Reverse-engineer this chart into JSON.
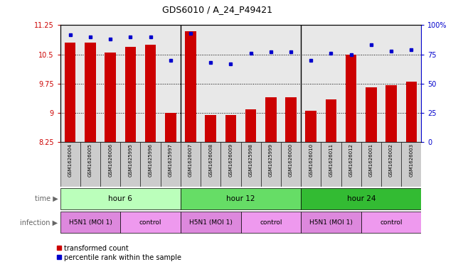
{
  "title": "GDS6010 / A_24_P49421",
  "samples": [
    "GSM1626004",
    "GSM1626005",
    "GSM1626006",
    "GSM1625995",
    "GSM1625996",
    "GSM1625997",
    "GSM1626007",
    "GSM1626008",
    "GSM1626009",
    "GSM1625998",
    "GSM1625999",
    "GSM1626000",
    "GSM1626010",
    "GSM1626011",
    "GSM1626012",
    "GSM1626001",
    "GSM1626002",
    "GSM1626003"
  ],
  "bar_values": [
    10.8,
    10.8,
    10.55,
    10.7,
    10.75,
    9.0,
    11.1,
    8.95,
    8.95,
    9.1,
    9.4,
    9.4,
    9.05,
    9.35,
    10.5,
    9.65,
    9.72,
    9.8
  ],
  "dot_values": [
    92,
    90,
    88,
    90,
    90,
    70,
    93,
    68,
    67,
    76,
    77,
    77,
    70,
    76,
    75,
    83,
    78,
    79
  ],
  "bar_color": "#cc0000",
  "dot_color": "#0000cc",
  "ymin": 8.25,
  "ymax": 11.25,
  "yticks": [
    8.25,
    9.0,
    9.75,
    10.5,
    11.25
  ],
  "ytick_labels": [
    "8.25",
    "9",
    "9.75",
    "10.5",
    "11.25"
  ],
  "y2min": 0,
  "y2max": 100,
  "y2ticks": [
    0,
    25,
    50,
    75,
    100
  ],
  "y2tick_labels": [
    "0",
    "25",
    "50",
    "75",
    "100%"
  ],
  "groups": [
    {
      "label": "hour 6",
      "start": 0,
      "end": 6,
      "color": "#bbffbb"
    },
    {
      "label": "hour 12",
      "start": 6,
      "end": 12,
      "color": "#66dd66"
    },
    {
      "label": "hour 24",
      "start": 12,
      "end": 18,
      "color": "#33bb33"
    }
  ],
  "infections": [
    {
      "label": "H5N1 (MOI 1)",
      "start": 0,
      "end": 3,
      "h5n1": true
    },
    {
      "label": "control",
      "start": 3,
      "end": 6,
      "h5n1": false
    },
    {
      "label": "H5N1 (MOI 1)",
      "start": 6,
      "end": 9,
      "h5n1": true
    },
    {
      "label": "control",
      "start": 9,
      "end": 12,
      "h5n1": false
    },
    {
      "label": "H5N1 (MOI 1)",
      "start": 12,
      "end": 15,
      "h5n1": true
    },
    {
      "label": "control",
      "start": 15,
      "end": 18,
      "h5n1": false
    }
  ],
  "h5n1_color": "#dd88dd",
  "ctrl_color": "#ee99ee",
  "time_label": "time",
  "infection_label": "infection",
  "legend_bar": "transformed count",
  "legend_dot": "percentile rank within the sample",
  "bg_color": "#ffffff",
  "panel_bg": "#e8e8e8",
  "xticklabel_bg": "#cccccc"
}
